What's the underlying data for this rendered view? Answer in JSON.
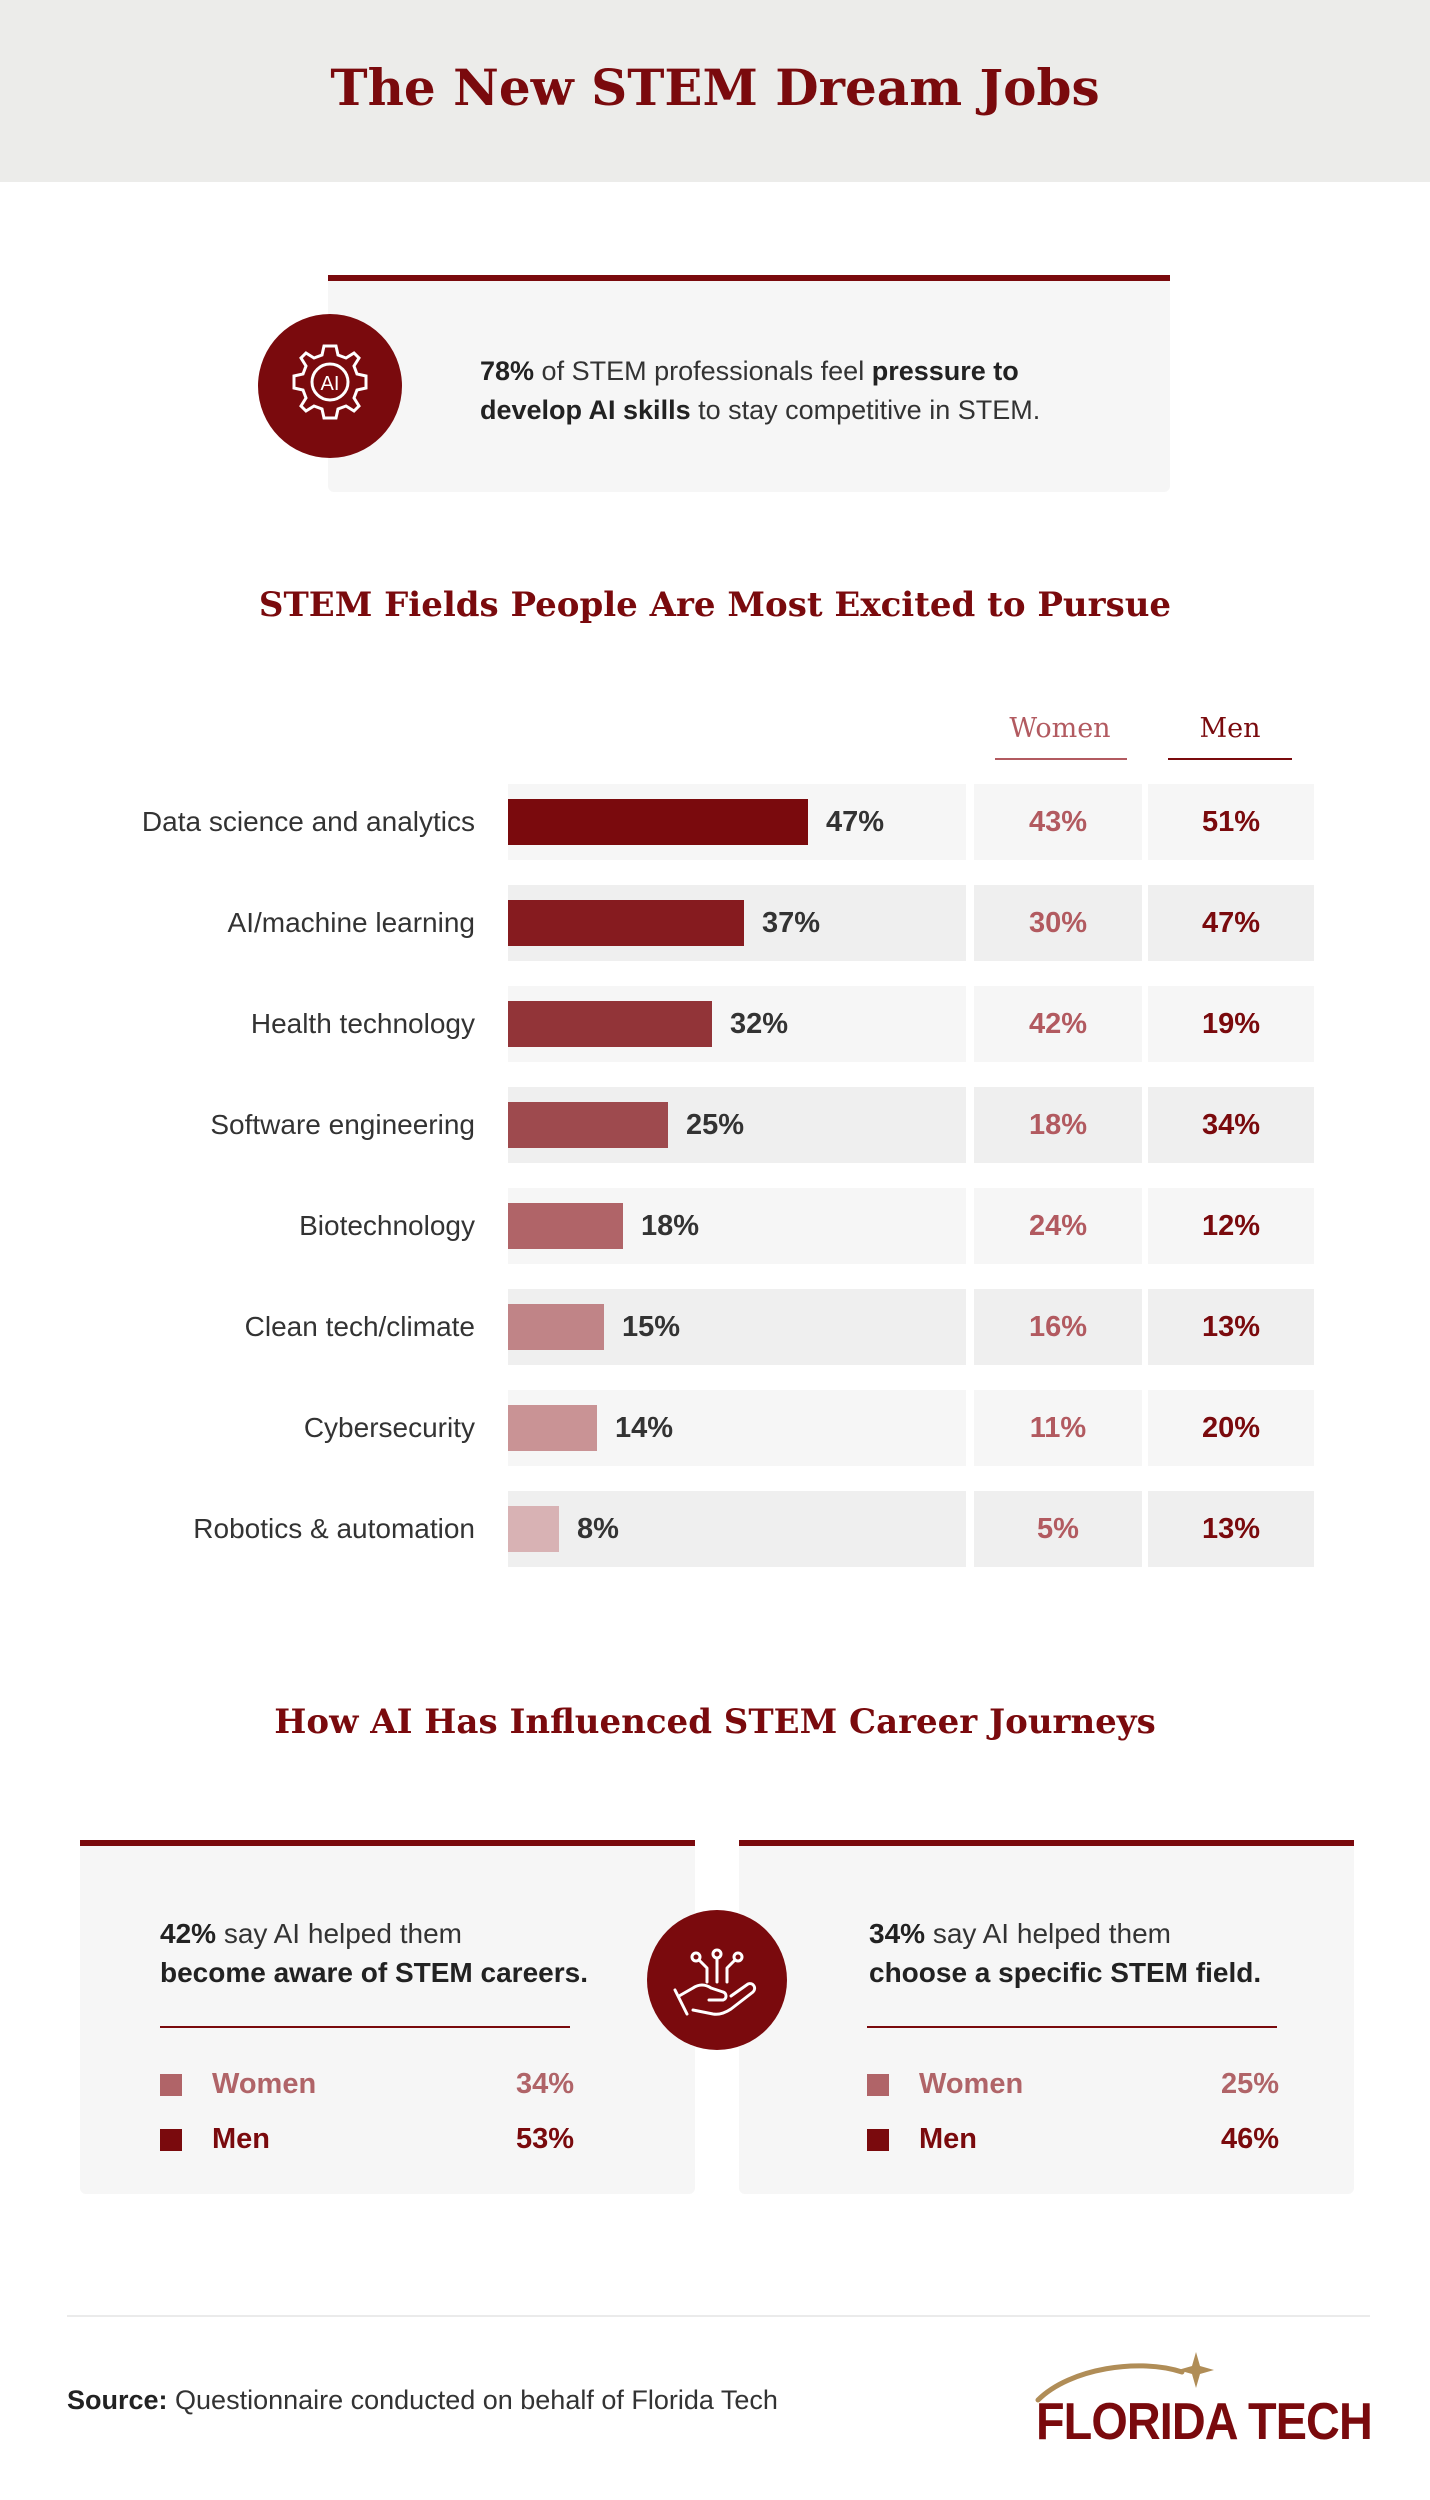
{
  "header": {
    "title": "The New STEM Dream Jobs"
  },
  "stat_card": {
    "icon": "ai-gear-icon",
    "icon_text": "AI",
    "value": "78%",
    "text_1": " of STEM professionals feel ",
    "bold": "pressure to develop AI skills",
    "text_2": " to stay competitive in STEM."
  },
  "fields_section": {
    "title": "STEM Fields People Are Most Excited to Pursue"
  },
  "columns": {
    "women": "Women",
    "men": "Men"
  },
  "colors": {
    "brand": "#7a0a0d",
    "women_text": "#b25a60",
    "men_text": "#7a0a0d"
  },
  "chart_data": {
    "type": "bar",
    "orientation": "horizontal",
    "title": "STEM Fields People Are Most Excited to Pursue",
    "categories": [
      "Data science and analytics",
      "AI/machine learning",
      "Health technology",
      "Software engineering",
      "Biotechnology",
      "Clean tech/climate",
      "Cybersecurity",
      "Robotics & automation"
    ],
    "values": [
      47,
      37,
      32,
      25,
      18,
      15,
      14,
      8
    ],
    "labels": [
      "47%",
      "37%",
      "32%",
      "25%",
      "18%",
      "15%",
      "14%",
      "8%"
    ],
    "bar_colors": [
      "#7a0a0d",
      "#861b1f",
      "#923438",
      "#9e4a4e",
      "#b06468",
      "#c08487",
      "#c99395",
      "#d8b2b4"
    ],
    "women": [
      "43%",
      "30%",
      "42%",
      "18%",
      "24%",
      "16%",
      "11%",
      "5%"
    ],
    "men": [
      "51%",
      "47%",
      "19%",
      "34%",
      "12%",
      "13%",
      "20%",
      "13%"
    ]
  },
  "ai_section": {
    "title": "How AI Has Influenced STEM Career Journeys",
    "center_icon": "hand-with-circuit-icon"
  },
  "ai_cards": [
    {
      "value": "42%",
      "text": " say AI helped them ",
      "bold": "become aware of STEM careers.",
      "women_label": "Women",
      "women_value": "34%",
      "men_label": "Men",
      "men_value": "53%"
    },
    {
      "value": "34%",
      "text": " say AI helped them ",
      "bold": "choose a specific STEM field.",
      "women_label": "Women",
      "women_value": "25%",
      "men_label": "Men",
      "men_value": "46%"
    }
  ],
  "footer": {
    "source_label": "Source:",
    "source_text": " Questionnaire conducted on behalf of Florida Tech",
    "logo_text": "FLORIDA TECH",
    "logo_icon": "star-swoosh-icon"
  }
}
